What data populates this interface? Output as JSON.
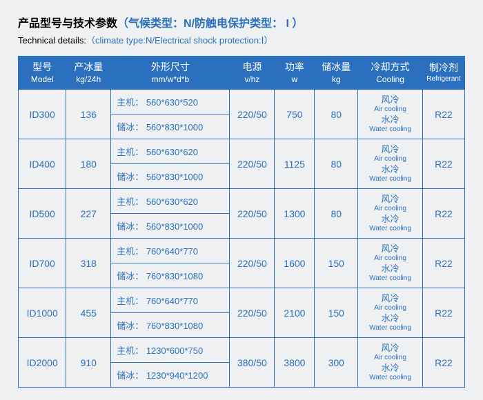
{
  "title": {
    "prefix": "产品型号与技术参数",
    "paren": "（气候类型：N/防触电保护类型： I ）"
  },
  "subtitle": {
    "prefix": "Technical details:",
    "paren": "（climate type:N/Electrical shock protection:Ⅰ）"
  },
  "headers": {
    "model": {
      "cn": "型号",
      "en": "Model"
    },
    "ice": {
      "cn": "产冰量",
      "en": "kg/24h"
    },
    "dim": {
      "cn": "外形尺寸",
      "en": "mm/w*d*b"
    },
    "vhz": {
      "cn": "电源",
      "en": "v/hz"
    },
    "w": {
      "cn": "功率",
      "en": "w"
    },
    "stor": {
      "cn": "储冰量",
      "en": "kg"
    },
    "cool": {
      "cn": "冷却方式",
      "en": "Cooling"
    },
    "ref": {
      "cn": "制冷剂",
      "en": "Refrigerant"
    }
  },
  "dim_labels": {
    "main": "主机：",
    "storage": "储冰："
  },
  "cooling": {
    "air": {
      "cn": "风冷",
      "en": "Air cooling"
    },
    "water": {
      "cn": "水冷",
      "en": "Water cooling"
    }
  },
  "rows": [
    {
      "model": "ID300",
      "ice": "136",
      "dim_main": "560*630*520",
      "dim_stor": "560*830*1000",
      "vhz": "220/50",
      "w": "750",
      "stor": "80",
      "ref": "R22"
    },
    {
      "model": "ID400",
      "ice": "180",
      "dim_main": "560*630*620",
      "dim_stor": "560*830*1000",
      "vhz": "220/50",
      "w": "1125",
      "stor": "80",
      "ref": "R22"
    },
    {
      "model": "ID500",
      "ice": "227",
      "dim_main": "560*630*620",
      "dim_stor": "560*830*1000",
      "vhz": "220/50",
      "w": "1300",
      "stor": "80",
      "ref": "R22"
    },
    {
      "model": "ID700",
      "ice": "318",
      "dim_main": "760*640*770",
      "dim_stor": "760*830*1080",
      "vhz": "220/50",
      "w": "1600",
      "stor": "150",
      "ref": "R22"
    },
    {
      "model": "ID1000",
      "ice": "455",
      "dim_main": "760*640*770",
      "dim_stor": "760*830*1080",
      "vhz": "220/50",
      "w": "2100",
      "stor": "150",
      "ref": "R22"
    },
    {
      "model": "ID2000",
      "ice": "910",
      "dim_main": "1230*600*750",
      "dim_stor": "1230*940*1200",
      "vhz": "380/50",
      "w": "3800",
      "stor": "300",
      "ref": "R22"
    }
  ]
}
